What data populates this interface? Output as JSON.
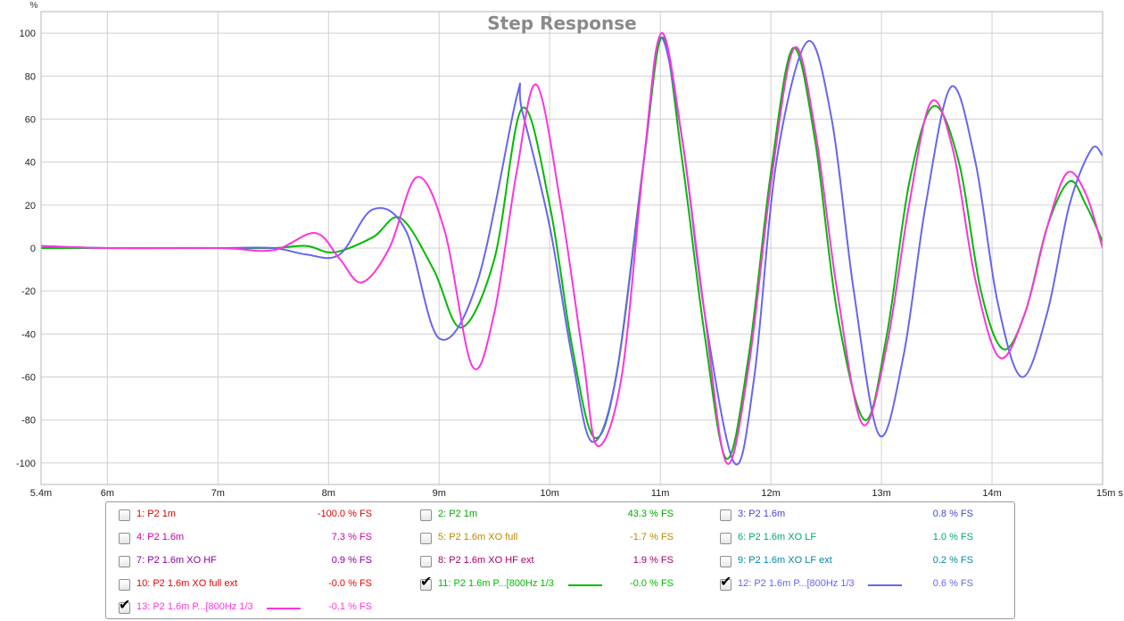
{
  "chart_data": {
    "type": "line",
    "title": "Step Response",
    "ylabel": "%",
    "xlabel": "",
    "xlim": [
      5.4,
      15.0
    ],
    "ylim": [
      -110,
      110
    ],
    "x_ticks": [
      {
        "v": 5.4,
        "label": "5.4m"
      },
      {
        "v": 6,
        "label": "6m"
      },
      {
        "v": 7,
        "label": "7m"
      },
      {
        "v": 8,
        "label": "8m"
      },
      {
        "v": 9,
        "label": "9m"
      },
      {
        "v": 10,
        "label": "10m"
      },
      {
        "v": 11,
        "label": "11m"
      },
      {
        "v": 12,
        "label": "12m"
      },
      {
        "v": 13,
        "label": "13m"
      },
      {
        "v": 14,
        "label": "14m"
      },
      {
        "v": 15,
        "label": "15m s"
      }
    ],
    "y_ticks": [
      100,
      80,
      60,
      40,
      20,
      0,
      -20,
      -40,
      -60,
      -80,
      -100
    ],
    "grid": true,
    "series": [
      {
        "name": "11: P2 1.6m P...[800Hz 1/3",
        "color": "#00bb00",
        "x": [
          5.4,
          6.0,
          7.0,
          7.5,
          7.8,
          8.05,
          8.4,
          8.65,
          8.95,
          9.2,
          9.5,
          9.75,
          10.0,
          10.2,
          10.4,
          10.6,
          10.85,
          11.02,
          11.2,
          11.4,
          11.6,
          11.8,
          12.0,
          12.2,
          12.4,
          12.6,
          12.85,
          13.05,
          13.25,
          13.47,
          13.7,
          13.9,
          14.1,
          14.3,
          14.5,
          14.7,
          14.85,
          15.0
        ],
        "y": [
          0,
          0,
          0,
          0,
          1,
          -2,
          5,
          14,
          -10,
          -37,
          -5,
          65,
          20,
          -45,
          -88,
          -60,
          40,
          98,
          40,
          -40,
          -98,
          -50,
          35,
          93,
          50,
          -30,
          -80,
          -40,
          30,
          66,
          40,
          -20,
          -47,
          -30,
          10,
          31,
          20,
          3
        ]
      },
      {
        "name": "12: P2 1.6m P...[800Hz 1/3",
        "color": "#6666ee",
        "x": [
          5.4,
          6.0,
          7.0,
          7.5,
          7.8,
          8.1,
          8.4,
          8.7,
          9.0,
          9.35,
          9.7,
          9.75,
          10.0,
          10.2,
          10.38,
          10.6,
          10.85,
          11.0,
          11.2,
          11.4,
          11.67,
          11.85,
          12.05,
          12.33,
          12.55,
          12.75,
          12.98,
          13.2,
          13.4,
          13.63,
          13.85,
          14.05,
          14.27,
          14.5,
          14.7,
          14.9,
          15.0
        ],
        "y": [
          1,
          0,
          0,
          0,
          -3,
          -3,
          18,
          8,
          -42,
          -15,
          70,
          64,
          10,
          -50,
          -90,
          -60,
          40,
          98,
          50,
          -30,
          -100,
          -60,
          40,
          96,
          60,
          -20,
          -87,
          -50,
          20,
          75,
          40,
          -25,
          -60,
          -30,
          20,
          46,
          43
        ]
      },
      {
        "name": "13: P2 1.6m P...[800Hz 1/3",
        "color": "#ff33dd",
        "x": [
          5.4,
          6.0,
          7.0,
          7.5,
          7.88,
          8.1,
          8.3,
          8.55,
          8.8,
          9.05,
          9.3,
          9.5,
          9.7,
          9.88,
          10.1,
          10.3,
          10.43,
          10.65,
          10.85,
          11.01,
          11.2,
          11.4,
          11.6,
          11.8,
          12.0,
          12.21,
          12.4,
          12.6,
          12.83,
          13.05,
          13.25,
          13.45,
          13.65,
          13.85,
          14.07,
          14.3,
          14.5,
          14.68,
          14.85,
          15.0
        ],
        "y": [
          1,
          0,
          0,
          -1,
          7,
          -5,
          -16,
          0,
          33,
          8,
          -55,
          -30,
          35,
          76,
          20,
          -50,
          -92,
          -60,
          40,
          100,
          50,
          -30,
          -100,
          -55,
          30,
          93,
          55,
          -20,
          -82,
          -45,
          20,
          68,
          45,
          -15,
          -51,
          -30,
          10,
          35,
          25,
          0
        ]
      }
    ]
  },
  "legend": [
    {
      "label": "1: P2 1m",
      "value": "-100.0 % FS",
      "color": "#dd0000",
      "checked": false,
      "swatch": false
    },
    {
      "label": "2: P2 1m",
      "value": "43.3 % FS",
      "color": "#00aa00",
      "checked": false,
      "swatch": false
    },
    {
      "label": "3: P2 1.6m",
      "value": "0.8 % FS",
      "color": "#4444dd",
      "checked": false,
      "swatch": false
    },
    {
      "label": "4: P2 1.6m",
      "value": "7.3 % FS",
      "color": "#cc00aa",
      "checked": false,
      "swatch": false
    },
    {
      "label": "5: P2 1.6m XO full",
      "value": "-1.7 % FS",
      "color": "#bb8800",
      "checked": false,
      "swatch": false
    },
    {
      "label": "6: P2 1.6m XO LF",
      "value": "1.0 % FS",
      "color": "#00aa66",
      "checked": false,
      "swatch": false
    },
    {
      "label": "7: P2 1.6m XO HF",
      "value": "0.9 % FS",
      "color": "#8800aa",
      "checked": false,
      "swatch": false
    },
    {
      "label": "8: P2 1.6m XO HF ext",
      "value": "1.9 % FS",
      "color": "#aa0066",
      "checked": false,
      "swatch": false
    },
    {
      "label": "9: P2 1.6m XO LF ext",
      "value": "0.2 % FS",
      "color": "#0088aa",
      "checked": false,
      "swatch": false
    },
    {
      "label": "10: P2 1.6m XO full ext",
      "value": "-0.0 % FS",
      "color": "#ee0000",
      "checked": false,
      "swatch": false
    },
    {
      "label": "11: P2 1.6m P...[800Hz 1/3",
      "value": "-0.0 % FS",
      "color": "#00bb00",
      "checked": true,
      "swatch": true
    },
    {
      "label": "12: P2 1.6m P...[800Hz 1/3",
      "value": "0.6 % FS",
      "color": "#6666ee",
      "checked": true,
      "swatch": true
    },
    {
      "label": "13: P2 1.6m P...[800Hz 1/3",
      "value": "-0.1 % FS",
      "color": "#ff33dd",
      "checked": true,
      "swatch": true
    }
  ]
}
